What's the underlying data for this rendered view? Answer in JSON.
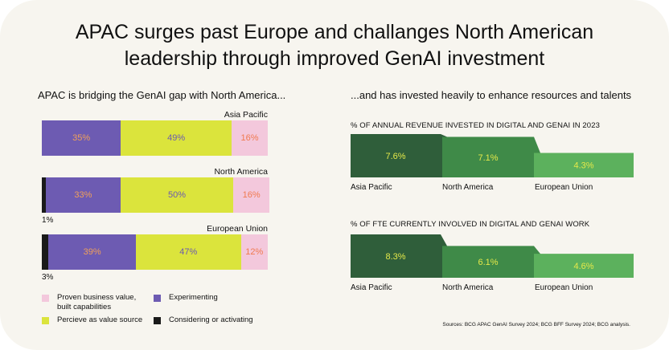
{
  "title_line1": "APAC surges past Europe and challanges North American",
  "title_line2": "leadership through improved GenAI investment",
  "left_subtitle": "APAC is bridging the GenAI gap with North America...",
  "right_subtitle": "...and has invested heavily to enhance resources and talents",
  "colors": {
    "experimenting": "#6d5bb2",
    "percieve": "#dbe43c",
    "proven": "#f3c8dc",
    "considering": "#1a1a1a",
    "metric_dark": "#2f5e3a",
    "metric_mid": "#3f8a48",
    "metric_light": "#5cb15d"
  },
  "chart_data": [
    {
      "type": "bar",
      "stacked": true,
      "orientation": "horizontal",
      "categories": [
        "Asia Pacific",
        "North America",
        "European Union"
      ],
      "series": [
        {
          "name": "Considering or activating",
          "values": [
            0,
            1,
            3
          ]
        },
        {
          "name": "Experimenting",
          "values": [
            35,
            33,
            39
          ]
        },
        {
          "name": "Percieve as value source",
          "values": [
            49,
            50,
            47
          ]
        },
        {
          "name": "Proven business value, built capabilities",
          "values": [
            16,
            16,
            12
          ]
        }
      ],
      "labels": {
        "experimenting": [
          "35%",
          "33%",
          "39%"
        ],
        "percieve": [
          "49%",
          "50%",
          "47%"
        ],
        "proven": [
          "16%",
          "16%",
          "12%"
        ],
        "considering": [
          "",
          "1%",
          "3%"
        ]
      },
      "legend": {
        "proven_line1": "Proven business value,",
        "proven_line2": "built capabilities",
        "experimenting": "Experimenting",
        "percieve": "Percieve as value source",
        "considering": "Considering or activating"
      }
    },
    {
      "type": "bar",
      "title": "% OF ANNUAL REVENUE INVESTED IN DIGITAL AND GENAI IN 2023",
      "categories": [
        "Asia Pacific",
        "North America",
        "European Union"
      ],
      "values": [
        7.6,
        7.1,
        4.3
      ],
      "value_labels": [
        "7.6%",
        "7.1%",
        "4.3%"
      ]
    },
    {
      "type": "bar",
      "title": "% OF FTE CURRENTLY INVOLVED IN DIGITAL AND GENAI WORK",
      "categories": [
        "Asia Pacific",
        "North America",
        "European Union"
      ],
      "values": [
        8.3,
        6.1,
        4.6
      ],
      "value_labels": [
        "8.3%",
        "6.1%",
        "4.6%"
      ]
    }
  ],
  "source": "Sources: BCG APAC GenAI Survey 2024; BCG BFF Survey 2024; BCG analysis."
}
